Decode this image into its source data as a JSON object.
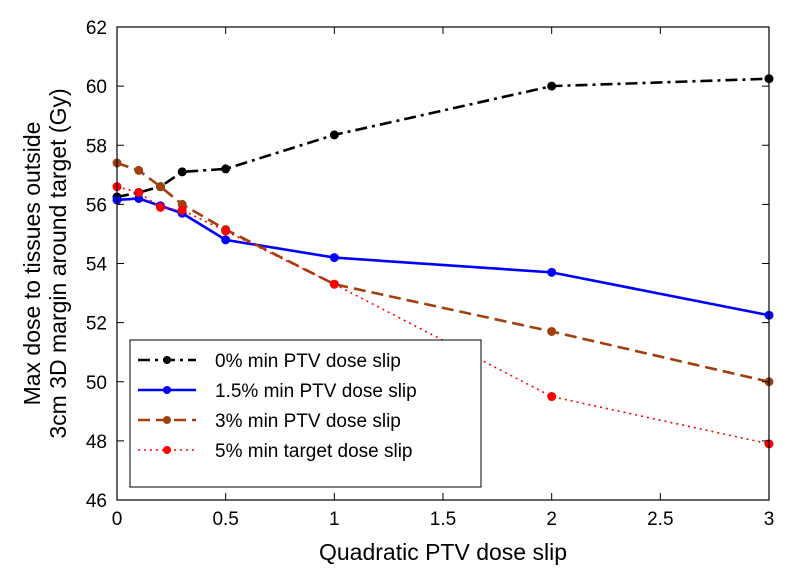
{
  "chart_data": {
    "type": "line",
    "title": "",
    "xlabel": "Quadratic PTV dose slip",
    "ylabel_lines": [
      "Max dose to tissues outside",
      "3cm 3D margin around target (Gy)"
    ],
    "xlim": [
      0,
      3
    ],
    "ylim": [
      46,
      62
    ],
    "xticks": [
      0,
      0.5,
      1,
      1.5,
      2,
      2.5,
      3
    ],
    "xtick_labels": [
      "0",
      "0.5",
      "1",
      "1.5",
      "2",
      "2.5",
      "3"
    ],
    "yticks": [
      46,
      48,
      50,
      52,
      54,
      56,
      58,
      60,
      62
    ],
    "ytick_labels": [
      "46",
      "48",
      "50",
      "52",
      "54",
      "56",
      "58",
      "60",
      "62"
    ],
    "grid": false,
    "legend_position": "bottom-left",
    "series": [
      {
        "name": "0% min PTV dose slip",
        "color": "#000000",
        "dash": "dashdot",
        "x": [
          0,
          0.1,
          0.2,
          0.3,
          0.5,
          1,
          2,
          3
        ],
        "y": [
          56.25,
          56.4,
          56.6,
          57.1,
          57.2,
          58.35,
          60.0,
          60.25
        ]
      },
      {
        "name": "1.5% min PTV dose slip",
        "color": "#0000ff",
        "dash": "solid",
        "x": [
          0,
          0.1,
          0.2,
          0.3,
          0.5,
          1,
          2,
          3
        ],
        "y": [
          56.15,
          56.2,
          55.95,
          55.7,
          54.8,
          54.2,
          53.7,
          52.25
        ]
      },
      {
        "name": "3% min PTV dose slip",
        "color": "#a0400f",
        "dash": "dashed",
        "x": [
          0,
          0.1,
          0.2,
          0.3,
          0.5,
          1,
          2,
          3
        ],
        "y": [
          57.4,
          57.15,
          56.6,
          56.0,
          55.15,
          53.3,
          51.7,
          50.0
        ]
      },
      {
        "name": "5% min target dose slip",
        "color": "#ff0000",
        "dash": "dotted",
        "x": [
          0,
          0.1,
          0.2,
          0.3,
          0.5,
          1,
          2,
          3
        ],
        "y": [
          56.6,
          56.4,
          55.9,
          55.8,
          55.1,
          53.3,
          49.5,
          47.9
        ]
      }
    ]
  }
}
